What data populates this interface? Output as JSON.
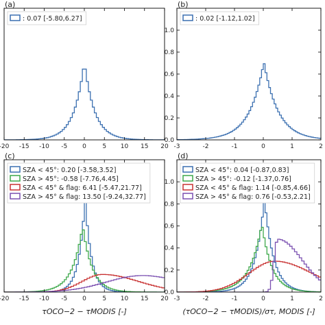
{
  "chart_data": [
    {
      "type": "bar",
      "panel": "(a)",
      "histtype": "step",
      "xlim": [
        -20,
        20
      ],
      "ylim": [
        0,
        1.2
      ],
      "xticks": [
        -20,
        -15,
        -10,
        -5,
        0,
        5,
        10,
        15,
        20
      ],
      "yticks": [],
      "xlabel": "",
      "legend_position": "top-left",
      "series": [
        {
          "name": ": 0.07 [-5.80,6.27]",
          "color": "#3a6fb0",
          "profile": "laplace",
          "peak_x": 0.0,
          "peak_y": 0.71,
          "width_left": 2.6,
          "width_right": 2.6,
          "bins": 80
        }
      ]
    },
    {
      "type": "bar",
      "panel": "(b)",
      "histtype": "step",
      "xlim": [
        -3,
        2
      ],
      "ylim": [
        0,
        1.2
      ],
      "xticks": [
        -3,
        -2,
        -1,
        0,
        1,
        2
      ],
      "yticks": [
        0.0,
        0.2,
        0.4,
        0.6,
        0.8,
        1.0
      ],
      "xlabel": "",
      "legend_position": "top-left",
      "series": [
        {
          "name": ": 0.02 [-1.12,1.02]",
          "color": "#3a6fb0",
          "profile": "laplace",
          "peak_x": 0.02,
          "peak_y": 0.71,
          "width_left": 0.5,
          "width_right": 0.5,
          "bins": 80
        }
      ]
    },
    {
      "type": "bar",
      "panel": "(c)",
      "histtype": "step",
      "xlim": [
        -20,
        20
      ],
      "ylim": [
        0,
        1.2
      ],
      "xticks": [
        -20,
        -15,
        -10,
        -5,
        0,
        5,
        10,
        15,
        20
      ],
      "yticks": [],
      "xlabel": "τOCO−2 − τMODIS [-]",
      "legend_position": "top-left",
      "series": [
        {
          "name": "SZA < 45°: 0.20 [-3.58,3.52]",
          "color": "#3a6fb0",
          "profile": "laplace",
          "peak_x": 0.2,
          "peak_y": 0.85,
          "width_left": 1.6,
          "width_right": 1.6,
          "bins": 80
        },
        {
          "name": "SZA > 45°: -0.58 [-7.76,4.45]",
          "color": "#3da84a",
          "profile": "laplace",
          "peak_x": -0.4,
          "peak_y": 0.6,
          "width_left": 2.6,
          "width_right": 2.4,
          "bins": 80
        },
        {
          "name": "SZA < 45° & flag: 6.41 [-5.47,21.77]",
          "color": "#c83232",
          "profile": "smooth",
          "peak_x": 4.5,
          "peak_y": 0.16,
          "width_left": 5.0,
          "width_right": 9.0,
          "bins": 60
        },
        {
          "name": "SZA > 45° & flag: 13.50 [-9.24,32.77]",
          "color": "#7a4fb0",
          "profile": "smooth",
          "peak_x": 14.5,
          "peak_y": 0.15,
          "width_left": 9.0,
          "width_right": 10.0,
          "bins": 60
        }
      ]
    },
    {
      "type": "bar",
      "panel": "(d)",
      "histtype": "step",
      "xlim": [
        -3,
        2
      ],
      "ylim": [
        0,
        1.2
      ],
      "xticks": [
        -3,
        -2,
        -1,
        0,
        1,
        2
      ],
      "yticks": [
        0.0,
        0.2,
        0.4,
        0.6,
        0.8,
        1.0
      ],
      "xlabel": "(τOCO−2 − τMODIS)/στ, MODIS [-]",
      "legend_position": "top-left",
      "series": [
        {
          "name": "SZA < 45°: 0.04 [-0.87,0.83]",
          "color": "#3a6fb0",
          "profile": "laplace",
          "peak_x": 0.04,
          "peak_y": 0.85,
          "width_left": 0.32,
          "width_right": 0.32,
          "bins": 80
        },
        {
          "name": "SZA > 45°: -0.12 [-1.37,0.76]",
          "color": "#3da84a",
          "profile": "laplace",
          "peak_x": -0.05,
          "peak_y": 0.62,
          "width_left": 0.42,
          "width_right": 0.35,
          "bins": 80
        },
        {
          "name": "SZA < 45° & flag: 1.14 [-0.85,4.66]",
          "color": "#c83232",
          "profile": "smooth",
          "peak_x": 0.4,
          "peak_y": 0.28,
          "width_left": 0.9,
          "width_right": 1.3,
          "bins": 60
        },
        {
          "name": "SZA > 45° & flag: 0.76 [-0.53,2.21]",
          "color": "#7a4fb0",
          "profile": "cutoff",
          "peak_x": 0.5,
          "peak_y": 0.48,
          "width_left": 0.12,
          "width_right": 0.85,
          "cut_x": -0.55,
          "bins": 60
        }
      ]
    }
  ]
}
